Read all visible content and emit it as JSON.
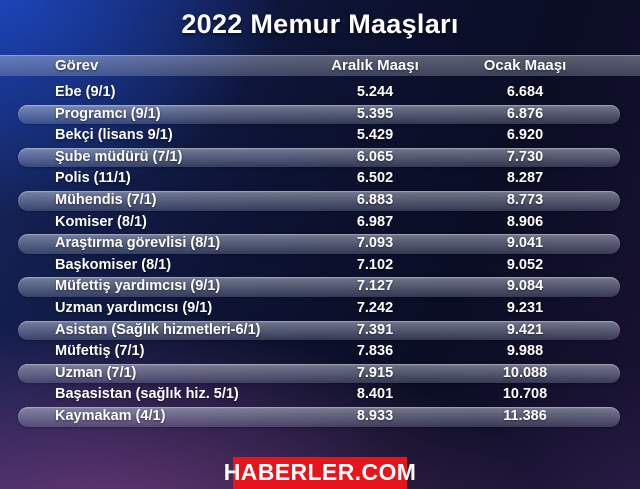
{
  "title": "2022 Memur Maaşları",
  "table": {
    "columns": [
      "Görev",
      "Aralık Maaşı",
      "Ocak Maaşı"
    ],
    "rows": [
      {
        "gorev": "Ebe (9/1)",
        "aralik": "5.244",
        "ocak": "6.684"
      },
      {
        "gorev": "Programcı (9/1)",
        "aralik": "5.395",
        "ocak": "6.876"
      },
      {
        "gorev": "Bekçi (lisans 9/1)",
        "aralik": "5.429",
        "ocak": "6.920"
      },
      {
        "gorev": "Şube müdürü (7/1)",
        "aralik": "6.065",
        "ocak": "7.730"
      },
      {
        "gorev": "Polis (11/1)",
        "aralik": "6.502",
        "ocak": "8.287"
      },
      {
        "gorev": "Mühendis (7/1)",
        "aralik": "6.883",
        "ocak": "8.773"
      },
      {
        "gorev": "Komiser (8/1)",
        "aralik": "6.987",
        "ocak": "8.906"
      },
      {
        "gorev": "Araştırma görevlisi (8/1)",
        "aralik": "7.093",
        "ocak": "9.041"
      },
      {
        "gorev": "Başkomiser (8/1)",
        "aralik": "7.102",
        "ocak": "9.052"
      },
      {
        "gorev": "Müfettiş yardımcısı (9/1)",
        "aralik": "7.127",
        "ocak": "9.084"
      },
      {
        "gorev": "Uzman yardımcısı (9/1)",
        "aralik": "7.242",
        "ocak": "9.231"
      },
      {
        "gorev": "Asistan (Sağlık hizmetleri-6/1)",
        "aralik": "7.391",
        "ocak": "9.421"
      },
      {
        "gorev": "Müfettiş (7/1)",
        "aralik": "7.836",
        "ocak": "9.988"
      },
      {
        "gorev": "Uzman (7/1)",
        "aralik": "7.915",
        "ocak": "10.088"
      },
      {
        "gorev": "Başasistan (sağlık hiz. 5/1)",
        "aralik": "8.401",
        "ocak": "10.708"
      },
      {
        "gorev": "Kaymakam (4/1)",
        "aralik": "8.933",
        "ocak": "11.386"
      }
    ]
  },
  "footer": {
    "logo_text": "HABERLER.COM",
    "logo_bg": "#e8141c"
  },
  "colors": {
    "accent_blue": "#1d4bcd",
    "accent_purple": "#7a4084",
    "logo_red": "#e8141c",
    "text": "#ffffff"
  },
  "chart_data": {
    "type": "table",
    "title": "2022 Memur Maaşları",
    "columns": [
      "Görev",
      "Aralık Maaşı",
      "Ocak Maaşı"
    ],
    "rows": [
      [
        "Ebe (9/1)",
        5244,
        6684
      ],
      [
        "Programcı (9/1)",
        5395,
        6876
      ],
      [
        "Bekçi (lisans 9/1)",
        5429,
        6920
      ],
      [
        "Şube müdürü (7/1)",
        6065,
        7730
      ],
      [
        "Polis (11/1)",
        6502,
        8287
      ],
      [
        "Mühendis (7/1)",
        6883,
        8773
      ],
      [
        "Komiser (8/1)",
        6987,
        8906
      ],
      [
        "Araştırma görevlisi (8/1)",
        7093,
        9041
      ],
      [
        "Başkomiser (8/1)",
        7102,
        9052
      ],
      [
        "Müfettiş yardımcısı (9/1)",
        7127,
        9084
      ],
      [
        "Uzman yardımcısı (9/1)",
        7242,
        9231
      ],
      [
        "Asistan (Sağlık hizmetleri-6/1)",
        7391,
        9421
      ],
      [
        "Müfettiş (7/1)",
        7836,
        9988
      ],
      [
        "Uzman (7/1)",
        7915,
        10088
      ],
      [
        "Başasistan (sağlık hiz. 5/1)",
        8401,
        10708
      ],
      [
        "Kaymakam (4/1)",
        8933,
        11386
      ]
    ]
  }
}
